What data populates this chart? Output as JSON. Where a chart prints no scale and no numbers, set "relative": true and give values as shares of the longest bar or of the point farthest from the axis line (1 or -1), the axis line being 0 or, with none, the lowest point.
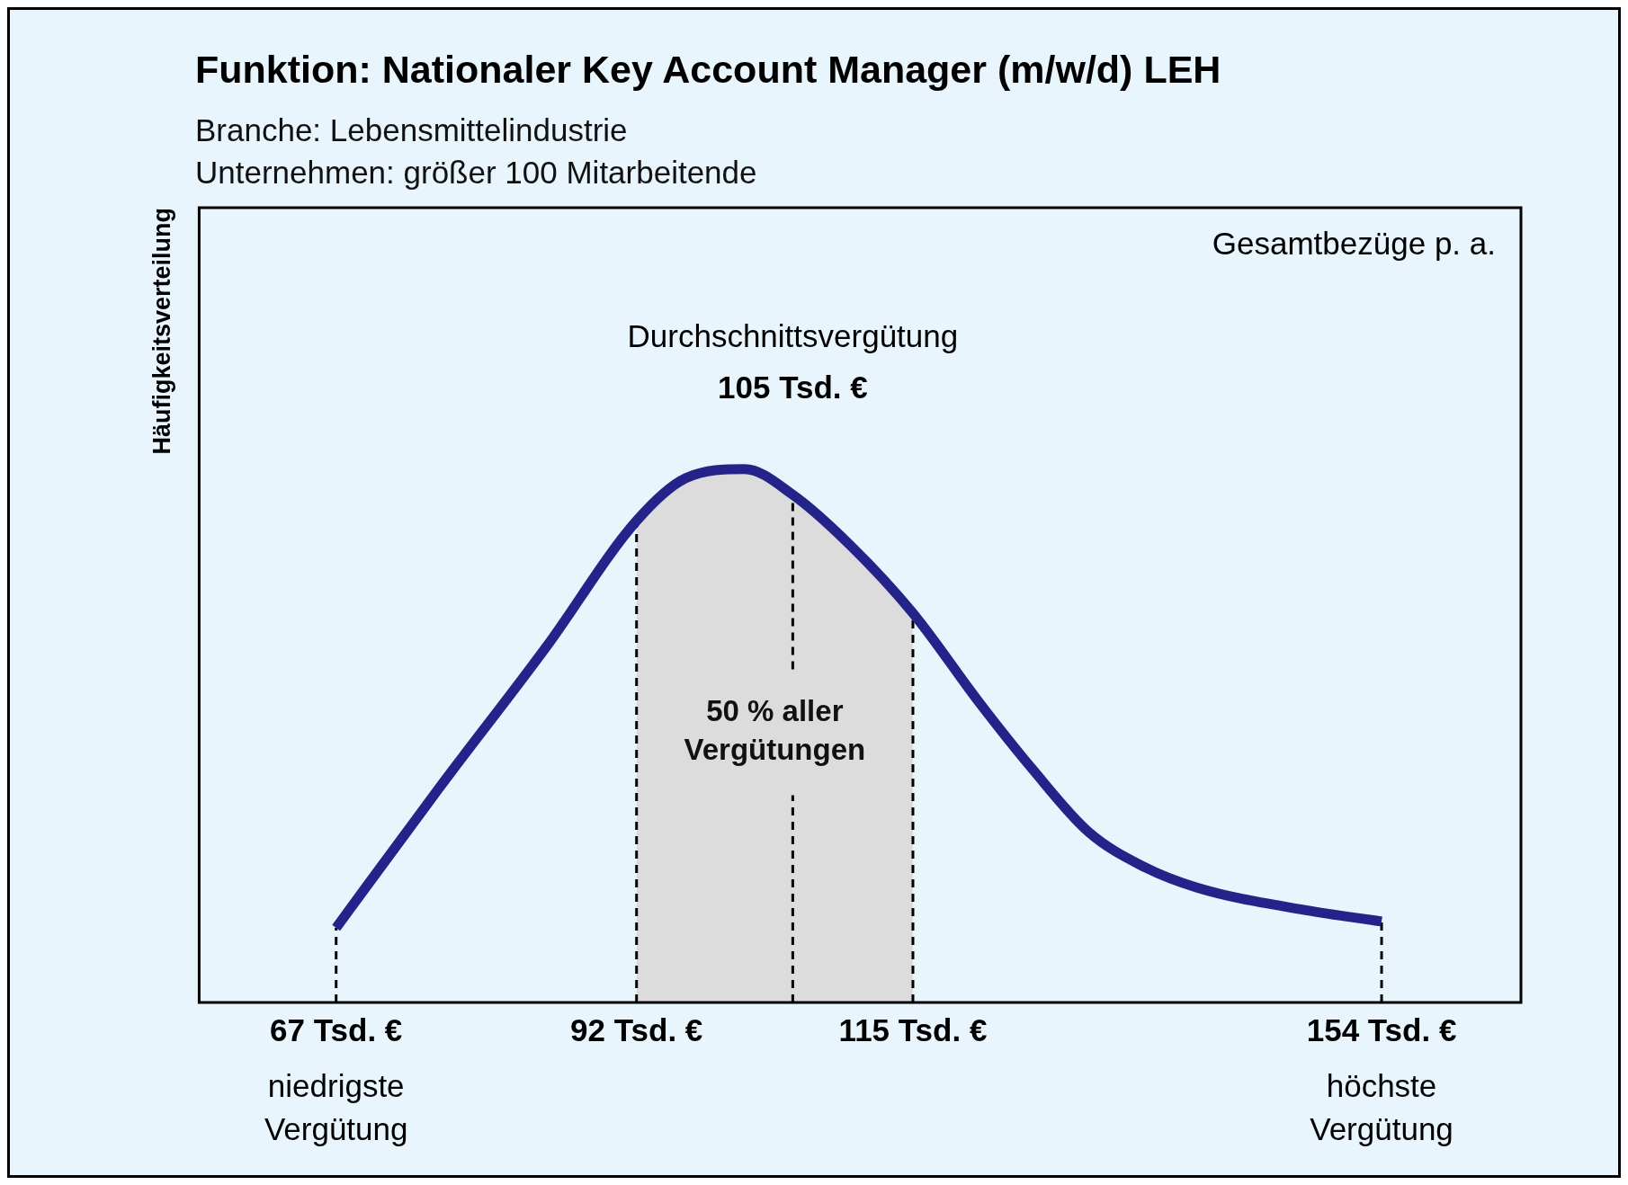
{
  "chart_data": {
    "type": "line",
    "title": "Funktion: Nationaler Key Account Manager (m/w/d) LEH",
    "subtitle": "Branche: Lebensmittelindustrie\nUnternehmen: größer 100 Mitarbeitende",
    "ylabel": "Häufigkeitsverteilung",
    "relative": true,
    "x": [
      67,
      75.5,
      84.5,
      92,
      96.1,
      101,
      105,
      109.8,
      115,
      120.6,
      125,
      129.6,
      134,
      138.7,
      147.7,
      154
    ],
    "series": [
      {
        "color": "#23238a",
        "values": [
          0.14,
          0.4,
          0.667,
          0.903,
          0.983,
          1,
          0.952,
          0.857,
          0.73,
          0.56,
          0.436,
          0.32,
          0.257,
          0.215,
          0.173,
          0.152
        ]
      }
    ],
    "xlim": [
      55.6,
      165.6
    ],
    "xticks": [
      {
        "value": 67,
        "label": "67 Tsd. €"
      },
      {
        "value": 92,
        "label": "92 Tsd. €"
      },
      {
        "value": 115,
        "label": "115 Tsd. €"
      },
      {
        "value": 154,
        "label": "154 Tsd. €"
      }
    ],
    "tick_labels": "x",
    "grid": false,
    "legend": false,
    "marker": "none",
    "line_style": "solid",
    "ref_lines": [
      {
        "axis": "x",
        "value": 67,
        "line_style": "dashed"
      },
      {
        "axis": "x",
        "value": 92,
        "line_style": "dashed"
      },
      {
        "axis": "x",
        "value": 105,
        "label": "105 Tsd. €",
        "line_style": "dashed"
      },
      {
        "axis": "x",
        "value": 115,
        "line_style": "dashed"
      },
      {
        "axis": "x",
        "value": 154,
        "line_style": "dashed"
      }
    ],
    "bands": [
      {
        "axis": "x",
        "from": 92,
        "to": 115,
        "label": "50 % aller Vergütungen",
        "color": "#dcdcdc"
      }
    ],
    "annotations": [
      "Gesamtbezüge p. a.",
      "Durchschnittsvergütung",
      "niedrigste Vergütung",
      "höchste Vergütung"
    ]
  }
}
